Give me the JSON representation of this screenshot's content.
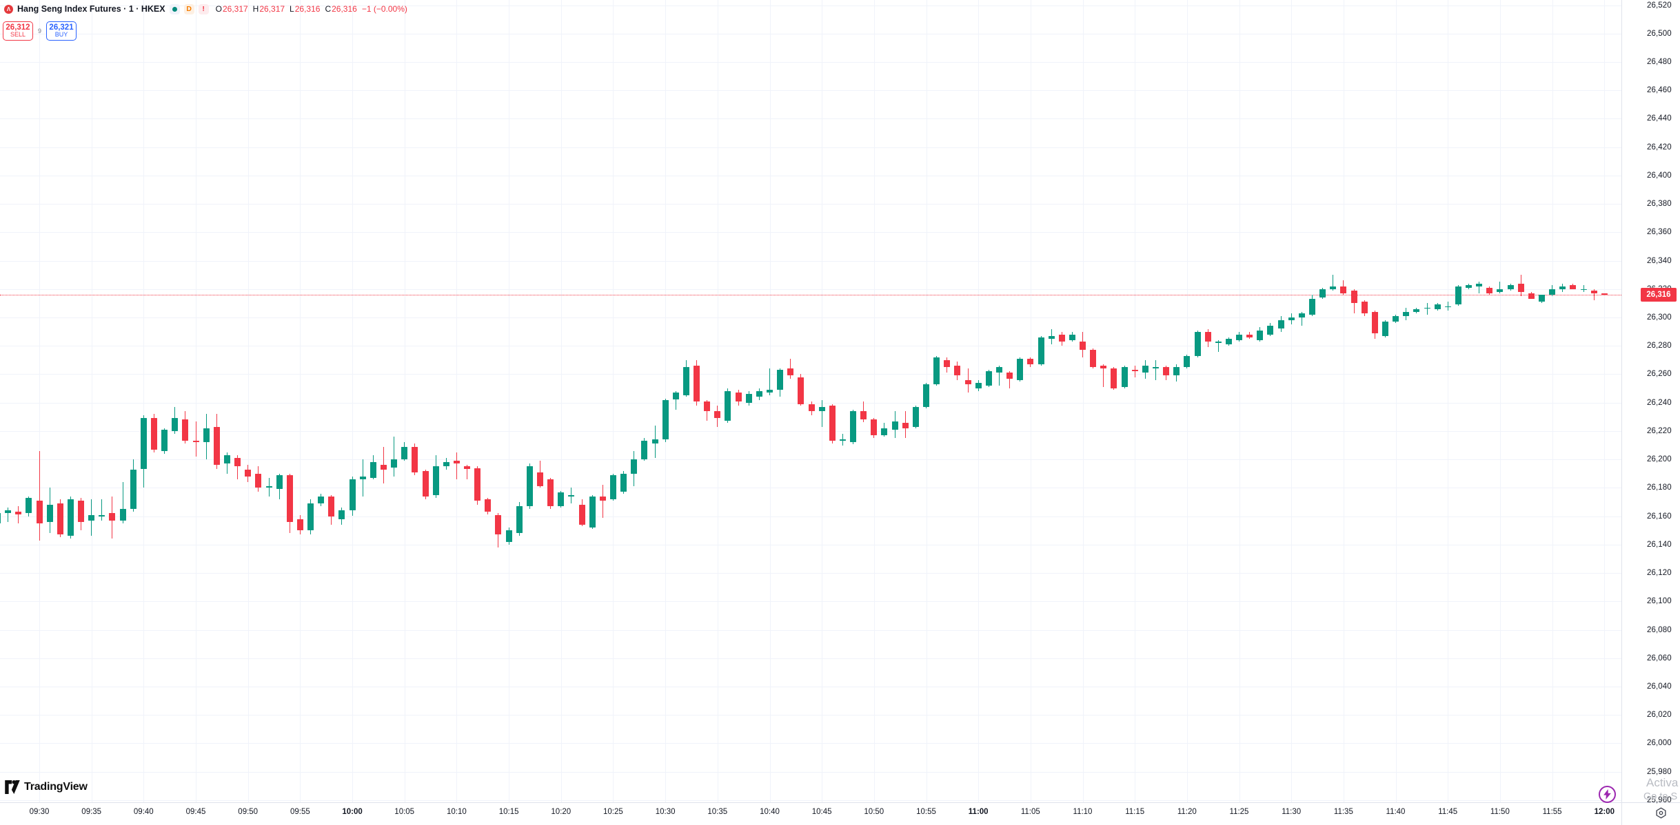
{
  "header": {
    "symbol_logo_glyph": "Λ",
    "title": "Hang Seng Index Futures · 1 · HKEX",
    "badges": {
      "delay": "D",
      "alert": "!"
    },
    "ohlc": [
      {
        "label": "O",
        "value": "26,317"
      },
      {
        "label": "H",
        "value": "26,317"
      },
      {
        "label": "L",
        "value": "26,316"
      },
      {
        "label": "C",
        "value": "26,316"
      }
    ],
    "change": "−1 (−0.00%)",
    "sell": {
      "price": "26,312",
      "label": "SELL"
    },
    "spread": "9",
    "buy": {
      "price": "26,321",
      "label": "BUY"
    }
  },
  "footer": {
    "logo_text": "TradingView"
  },
  "watermark": {
    "line1": "Activa",
    "line2": "Go to S"
  },
  "price_axis": {
    "last_price": "26,316",
    "ticks": [
      "25,960",
      "25,980",
      "26,000",
      "26,020",
      "26,040",
      "26,060",
      "26,080",
      "26,100",
      "26,120",
      "26,140",
      "26,160",
      "26,180",
      "26,200",
      "26,220",
      "26,240",
      "26,260",
      "26,280",
      "26,300",
      "26,320",
      "26,340",
      "26,360",
      "26,380",
      "26,400",
      "26,420",
      "26,440",
      "26,460",
      "26,480",
      "26,500",
      "26,520"
    ]
  },
  "time_axis": {
    "ticks": [
      "09:30",
      "09:35",
      "09:40",
      "09:45",
      "09:50",
      "09:55",
      "10:00",
      "10:05",
      "10:10",
      "10:15",
      "10:20",
      "10:25",
      "10:30",
      "10:35",
      "10:40",
      "10:45",
      "10:50",
      "10:55",
      "11:00",
      "11:05",
      "11:10",
      "11:15",
      "11:20",
      "11:25",
      "11:30",
      "11:35",
      "11:40",
      "11:45",
      "11:50",
      "11:55",
      "12:00"
    ],
    "bold_ticks": [
      "10:00",
      "11:00",
      "12:00"
    ]
  },
  "colors": {
    "up": "#089981",
    "down": "#f23645",
    "sell": "#f23645",
    "buy": "#2962ff",
    "last_price_bg": "#f23645",
    "grid": "#f0f3fa",
    "axis_text": "#131722",
    "watermark": "#b9bcc3",
    "flash_icon": "#9c27b0"
  },
  "chart_data": {
    "type": "candlestick",
    "title": "Hang Seng Index Futures",
    "interval": "1",
    "exchange": "HKEX",
    "legend": "O H L C change",
    "grid": true,
    "legend_position": "top-left",
    "price_axis": {
      "min": 25960,
      "max": 26520,
      "step": 20,
      "side": "right"
    },
    "time_axis": {
      "start": "09:26",
      "end": "12:00",
      "label_step_minutes": 5,
      "side": "bottom"
    },
    "last_price": 26316,
    "session_high": 26330,
    "session_low": 26138,
    "candles": [
      [
        "09:26",
        26155,
        26164,
        26152,
        26162
      ],
      [
        "09:27",
        26162,
        26166,
        26156,
        26164
      ],
      [
        "09:28",
        26163,
        26167,
        26155,
        26161
      ],
      [
        "09:29",
        26162,
        26174,
        26160,
        26173
      ],
      [
        "09:30",
        26171,
        26206,
        26143,
        26155
      ],
      [
        "09:31",
        26156,
        26180,
        26148,
        26168
      ],
      [
        "09:32",
        26169,
        26172,
        26145,
        26147
      ],
      [
        "09:33",
        26146,
        26174,
        26144,
        26172
      ],
      [
        "09:34",
        26171,
        26173,
        26150,
        26156
      ],
      [
        "09:35",
        26157,
        26172,
        26146,
        26161
      ],
      [
        "09:36",
        26160,
        26172,
        26157,
        26161
      ],
      [
        "09:37",
        26162,
        26174,
        26144,
        26157
      ],
      [
        "09:38",
        26157,
        26184,
        26155,
        26165
      ],
      [
        "09:39",
        26165,
        26200,
        26163,
        26193
      ],
      [
        "09:40",
        26193,
        26231,
        26180,
        26229
      ],
      [
        "09:41",
        26229,
        26232,
        26205,
        26207
      ],
      [
        "09:42",
        26206,
        26222,
        26204,
        26221
      ],
      [
        "09:43",
        26220,
        26237,
        26218,
        26229
      ],
      [
        "09:44",
        26228,
        26234,
        26211,
        26213
      ],
      [
        "09:45",
        26213,
        26227,
        26202,
        26212
      ],
      [
        "09:46",
        26212,
        26232,
        26200,
        26222
      ],
      [
        "09:47",
        26223,
        26232,
        26193,
        26196
      ],
      [
        "09:48",
        26197,
        26205,
        26190,
        26203
      ],
      [
        "09:49",
        26201,
        26203,
        26186,
        26195
      ],
      [
        "09:50",
        26193,
        26196,
        26184,
        26188
      ],
      [
        "09:51",
        26190,
        26195,
        26177,
        26180
      ],
      [
        "09:52",
        26180,
        26187,
        26174,
        26181
      ],
      [
        "09:53",
        26179,
        26190,
        26172,
        26189
      ],
      [
        "09:54",
        26189,
        26190,
        26148,
        26156
      ],
      [
        "09:55",
        26158,
        26161,
        26147,
        26150
      ],
      [
        "09:56",
        26150,
        26172,
        26147,
        26169
      ],
      [
        "09:57",
        26169,
        26176,
        26167,
        26174
      ],
      [
        "09:58",
        26174,
        26175,
        26154,
        26160
      ],
      [
        "09:59",
        26158,
        26166,
        26154,
        26164
      ],
      [
        "10:00",
        26164,
        26188,
        26160,
        26186
      ],
      [
        "10:01",
        26186,
        26200,
        26174,
        26188
      ],
      [
        "10:02",
        26187,
        26203,
        26186,
        26198
      ],
      [
        "10:03",
        26196,
        26209,
        26183,
        26193
      ],
      [
        "10:04",
        26194,
        26216,
        26188,
        26200
      ],
      [
        "10:05",
        26200,
        26212,
        26199,
        26209
      ],
      [
        "10:06",
        26209,
        26211,
        26189,
        26191
      ],
      [
        "10:07",
        26192,
        26193,
        26172,
        26174
      ],
      [
        "10:08",
        26175,
        26203,
        26173,
        26195
      ],
      [
        "10:09",
        26195,
        26201,
        26193,
        26198
      ],
      [
        "10:10",
        26199,
        26205,
        26186,
        26197
      ],
      [
        "10:11",
        26195,
        26196,
        26186,
        26193
      ],
      [
        "10:12",
        26194,
        26195,
        26168,
        26171
      ],
      [
        "10:13",
        26172,
        26173,
        26161,
        26163
      ],
      [
        "10:14",
        26161,
        26162,
        26138,
        26147
      ],
      [
        "10:15",
        26142,
        26152,
        26140,
        26150
      ],
      [
        "10:16",
        26148,
        26170,
        26146,
        26167
      ],
      [
        "10:17",
        26167,
        26197,
        26165,
        26195
      ],
      [
        "10:18",
        26191,
        26199,
        26180,
        26181
      ],
      [
        "10:19",
        26186,
        26187,
        26165,
        26167
      ],
      [
        "10:20",
        26167,
        26178,
        26166,
        26177
      ],
      [
        "10:21",
        26174,
        26180,
        26169,
        26175
      ],
      [
        "10:22",
        26168,
        26172,
        26153,
        26154
      ],
      [
        "10:23",
        26152,
        26175,
        26151,
        26174
      ],
      [
        "10:24",
        26174,
        26182,
        26159,
        26171
      ],
      [
        "10:25",
        26172,
        26190,
        26171,
        26189
      ],
      [
        "10:26",
        26177,
        26192,
        26176,
        26190
      ],
      [
        "10:27",
        26190,
        26206,
        26181,
        26200
      ],
      [
        "10:28",
        26200,
        26215,
        26199,
        26213
      ],
      [
        "10:29",
        26211,
        26224,
        26201,
        26214
      ],
      [
        "10:30",
        26214,
        26243,
        26212,
        26242
      ],
      [
        "10:31",
        26242,
        26248,
        26235,
        26247
      ],
      [
        "10:32",
        26245,
        26270,
        26244,
        26265
      ],
      [
        "10:33",
        26266,
        26270,
        26238,
        26241
      ],
      [
        "10:34",
        26241,
        26242,
        26227,
        26234
      ],
      [
        "10:35",
        26234,
        26238,
        26223,
        26229
      ],
      [
        "10:36",
        26227,
        26250,
        26226,
        26248
      ],
      [
        "10:37",
        26247,
        26249,
        26238,
        26241
      ],
      [
        "10:38",
        26240,
        26248,
        26238,
        26246
      ],
      [
        "10:39",
        26244,
        26250,
        26242,
        26248
      ],
      [
        "10:40",
        26247,
        26264,
        26245,
        26249
      ],
      [
        "10:41",
        26249,
        26264,
        26244,
        26263
      ],
      [
        "10:42",
        26264,
        26271,
        26257,
        26259
      ],
      [
        "10:43",
        26258,
        26260,
        26238,
        26239
      ],
      [
        "10:44",
        26239,
        26241,
        26231,
        26234
      ],
      [
        "10:45",
        26234,
        26242,
        26223,
        26237
      ],
      [
        "10:46",
        26238,
        26239,
        26211,
        26213
      ],
      [
        "10:47",
        26213,
        26218,
        26210,
        26214
      ],
      [
        "10:48",
        26212,
        26235,
        26211,
        26234
      ],
      [
        "10:49",
        26234,
        26241,
        26226,
        26228
      ],
      [
        "10:50",
        26228,
        26229,
        26215,
        26217
      ],
      [
        "10:51",
        26217,
        26226,
        26216,
        26222
      ],
      [
        "10:52",
        26221,
        26234,
        26215,
        26227
      ],
      [
        "10:53",
        26226,
        26234,
        26215,
        26222
      ],
      [
        "10:54",
        26223,
        26238,
        26222,
        26237
      ],
      [
        "10:55",
        26237,
        26254,
        26236,
        26253
      ],
      [
        "10:56",
        26253,
        26273,
        26252,
        26272
      ],
      [
        "10:57",
        26270,
        26272,
        26261,
        26265
      ],
      [
        "10:58",
        26266,
        26269,
        26256,
        26259
      ],
      [
        "10:59",
        26256,
        26264,
        26247,
        26253
      ],
      [
        "11:00",
        26250,
        26256,
        26248,
        26254
      ],
      [
        "11:01",
        26252,
        26263,
        26251,
        26262
      ],
      [
        "11:02",
        26261,
        26266,
        26252,
        26265
      ],
      [
        "11:03",
        26261,
        26262,
        26250,
        26257
      ],
      [
        "11:04",
        26256,
        26272,
        26255,
        26271
      ],
      [
        "11:05",
        26271,
        26272,
        26265,
        26267
      ],
      [
        "11:06",
        26267,
        26287,
        26266,
        26286
      ],
      [
        "11:07",
        26285,
        26292,
        26281,
        26287
      ],
      [
        "11:08",
        26288,
        26290,
        26280,
        26283
      ],
      [
        "11:09",
        26284,
        26290,
        26283,
        26288
      ],
      [
        "11:10",
        26283,
        26290,
        26272,
        26277
      ],
      [
        "11:11",
        26277,
        26278,
        26264,
        26265
      ],
      [
        "11:12",
        26266,
        26267,
        26251,
        26264
      ],
      [
        "11:13",
        26264,
        26265,
        26249,
        26250
      ],
      [
        "11:14",
        26251,
        26266,
        26250,
        26265
      ],
      [
        "11:15",
        26263,
        26266,
        26258,
        26262
      ],
      [
        "11:16",
        26261,
        26270,
        26257,
        26266
      ],
      [
        "11:17",
        26265,
        26270,
        26256,
        26265
      ],
      [
        "11:18",
        26265,
        26266,
        26256,
        26259
      ],
      [
        "11:19",
        26259,
        26267,
        26255,
        26265
      ],
      [
        "11:20",
        26265,
        26274,
        26264,
        26273
      ],
      [
        "11:21",
        26273,
        26291,
        26272,
        26290
      ],
      [
        "11:22",
        26290,
        26292,
        26279,
        26283
      ],
      [
        "11:23",
        26283,
        26284,
        26276,
        26283
      ],
      [
        "11:24",
        26281,
        26286,
        26280,
        26285
      ],
      [
        "11:25",
        26284,
        26290,
        26283,
        26288
      ],
      [
        "11:26",
        26288,
        26290,
        26285,
        26286
      ],
      [
        "11:27",
        26284,
        26293,
        26283,
        26291
      ],
      [
        "11:28",
        26288,
        26296,
        26287,
        26294
      ],
      [
        "11:29",
        26292,
        26301,
        26290,
        26298
      ],
      [
        "11:30",
        26298,
        26303,
        26295,
        26300
      ],
      [
        "11:31",
        26300,
        26304,
        26294,
        26303
      ],
      [
        "11:32",
        26302,
        26316,
        26301,
        26313
      ],
      [
        "11:33",
        26314,
        26321,
        26313,
        26320
      ],
      [
        "11:34",
        26320,
        26330,
        26319,
        26322
      ],
      [
        "11:35",
        26322,
        26326,
        26316,
        26317
      ],
      [
        "11:36",
        26319,
        26320,
        26303,
        26310
      ],
      [
        "11:37",
        26311,
        26312,
        26301,
        26303
      ],
      [
        "11:38",
        26304,
        26305,
        26285,
        26289
      ],
      [
        "11:39",
        26287,
        26298,
        26286,
        26297
      ],
      [
        "11:40",
        26297,
        26302,
        26296,
        26301
      ],
      [
        "11:41",
        26301,
        26307,
        26298,
        26304
      ],
      [
        "11:42",
        26304,
        26307,
        26303,
        26306
      ],
      [
        "11:43",
        26307,
        26310,
        26302,
        26307
      ],
      [
        "11:44",
        26306,
        26310,
        26305,
        26309
      ],
      [
        "11:45",
        26308,
        26311,
        26305,
        26308
      ],
      [
        "11:46",
        26309,
        26323,
        26308,
        26322
      ],
      [
        "11:47",
        26321,
        26324,
        26320,
        26323
      ],
      [
        "11:48",
        26322,
        26325,
        26317,
        26324
      ],
      [
        "11:49",
        26321,
        26322,
        26316,
        26317
      ],
      [
        "11:50",
        26318,
        26325,
        26317,
        26320
      ],
      [
        "11:51",
        26320,
        26324,
        26319,
        26323
      ],
      [
        "11:52",
        26324,
        26330,
        26315,
        26318
      ],
      [
        "11:53",
        26317,
        26318,
        26313,
        26313
      ],
      [
        "11:54",
        26311,
        26316,
        26310,
        26316
      ],
      [
        "11:55",
        26316,
        26323,
        26315,
        26320
      ],
      [
        "11:56",
        26320,
        26324,
        26318,
        26322
      ],
      [
        "11:57",
        26323,
        26324,
        26320,
        26320
      ],
      [
        "11:58",
        26320,
        26323,
        26318,
        26320
      ],
      [
        "11:59",
        26319,
        26320,
        26312,
        26317
      ],
      [
        "12:00",
        26317,
        26317,
        26316,
        26316
      ]
    ]
  }
}
